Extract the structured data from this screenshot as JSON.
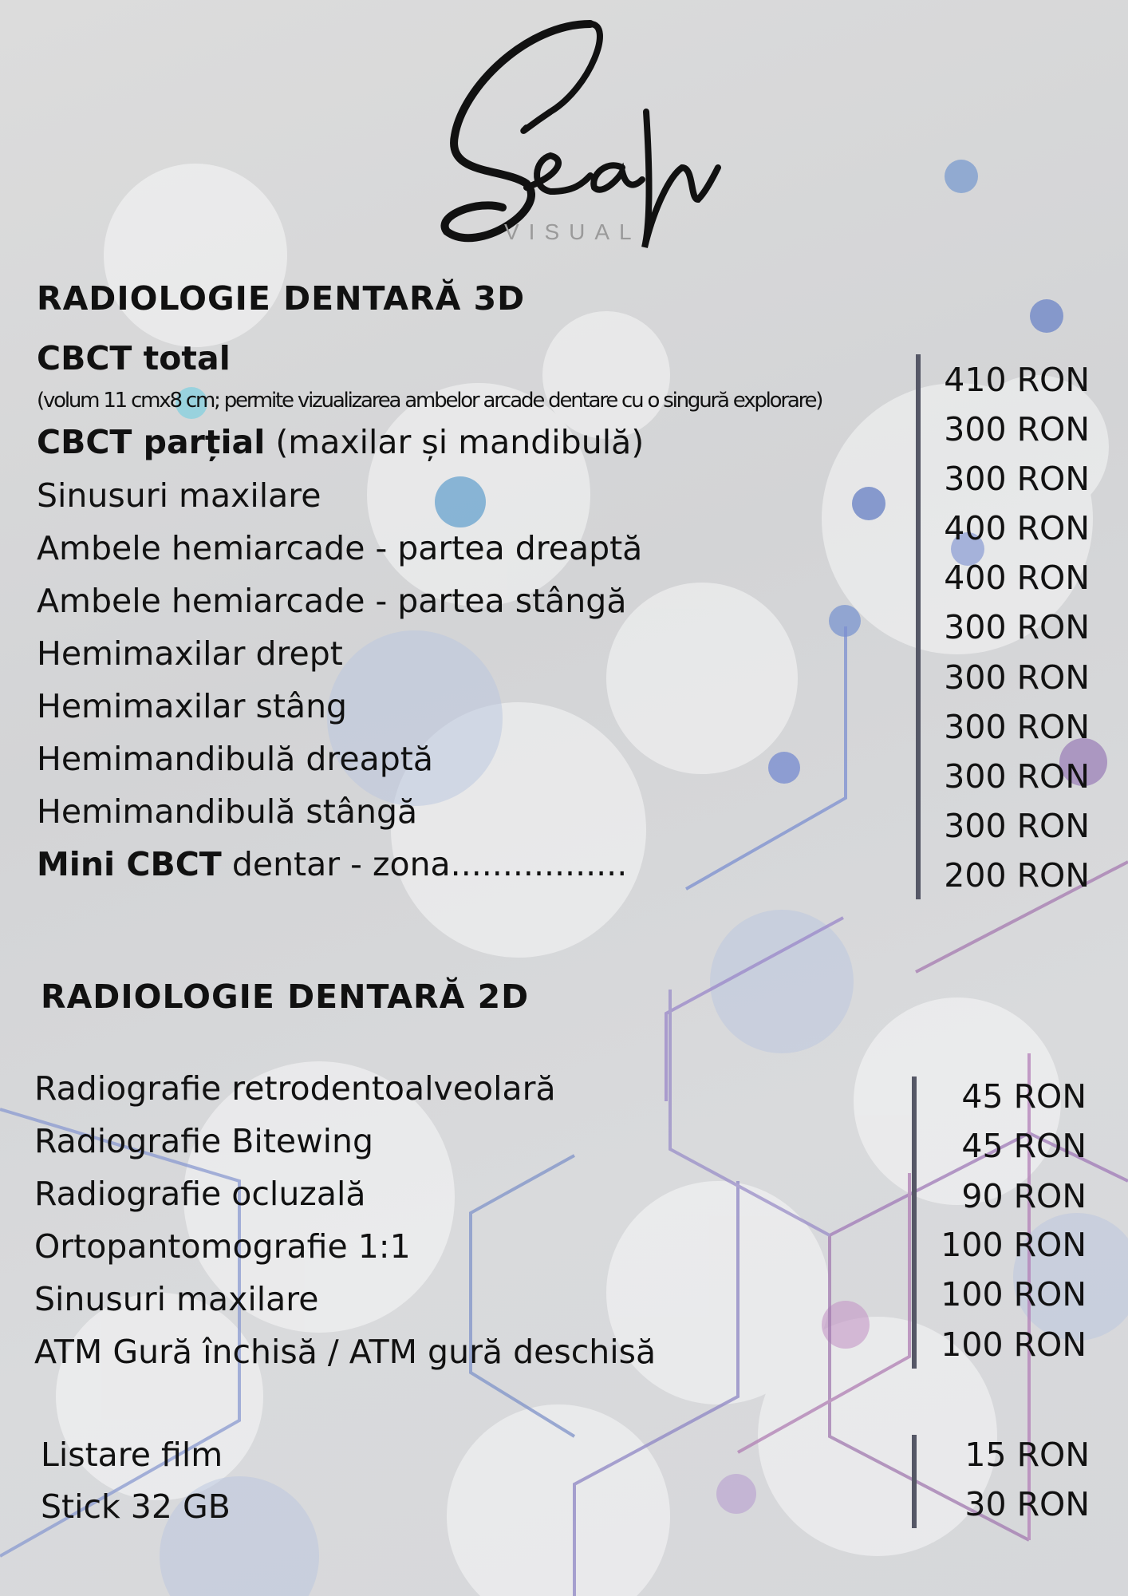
{
  "logo": {
    "script": "Seah",
    "subtitle": "VISUAL"
  },
  "section_3d": {
    "title": "RADIOLOGIE DENTARĂ 3D",
    "items": [
      {
        "bold": "CBCT total",
        "label": "",
        "note": "(volum 11 cmx8 cm; permite vizualizarea ambelor arcade dentare cu o singură explorare)",
        "price": "410 RON"
      },
      {
        "bold": "CBCT parțial",
        "label": " (maxilar și mandibulă)",
        "price": "300 RON"
      },
      {
        "bold": "",
        "label": "Sinusuri maxilare",
        "price": "300 RON"
      },
      {
        "bold": "",
        "label": "Ambele hemiarcade - partea dreaptă",
        "price": "400 RON"
      },
      {
        "bold": "",
        "label": "Ambele hemiarcade - partea stângă",
        "price": "400 RON"
      },
      {
        "bold": "",
        "label": "Hemimaxilar drept",
        "price": "300 RON"
      },
      {
        "bold": "",
        "label": "Hemimaxilar stâng",
        "price": "300 RON"
      },
      {
        "bold": "",
        "label": "Hemimandibulă dreaptă",
        "price": "300 RON"
      },
      {
        "bold": "",
        "label": "Hemimandibulă stângă",
        "price": "300 RON"
      },
      {
        "bold": "Mini CBCT",
        "label": " dentar - zona.................",
        "price": "300 RON"
      }
    ],
    "extra_price": "200 RON"
  },
  "section_2d": {
    "title": "RADIOLOGIE DENTARĂ 2D",
    "items": [
      {
        "label": "Radiografie retrodentoalveolară",
        "price": "45 RON"
      },
      {
        "label": "Radiografie Bitewing",
        "price": "45 RON"
      },
      {
        "label": "Radiografie ocluzală",
        "price": "90 RON"
      },
      {
        "label": "Ortopantomografie 1:1",
        "price": "100 RON"
      },
      {
        "label": "Sinusuri maxilare",
        "price": "100 RON"
      },
      {
        "label": "ATM Gură închisă / ATM gură deschisă",
        "price": "100 RON"
      }
    ]
  },
  "extras": {
    "items": [
      {
        "label": "Listare film",
        "price": "15 RON"
      },
      {
        "label": "Stick 32 GB",
        "price": "30 RON"
      }
    ]
  },
  "colors": {
    "bar": "#555766",
    "text": "#111111",
    "accent_blue": "#7f93c9",
    "accent_purple": "#a27ab0"
  }
}
